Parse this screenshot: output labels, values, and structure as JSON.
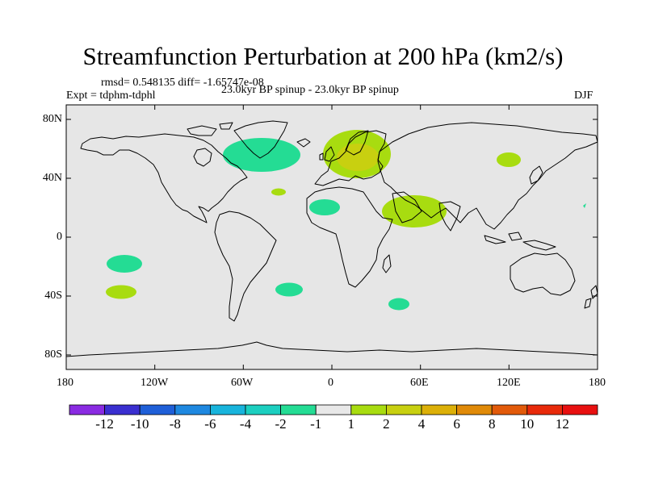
{
  "title": "Streamfunction Perturbation at 200 hPa (km2/s)",
  "stats": "rmsd= 0.548135 diff= -1.65747e-08",
  "left_label": "Expt = tdphm-tdphl",
  "center_label": "23.0kyr BP spinup - 23.0kyr BP spinup",
  "right_label": "DJF",
  "x_ticks": [
    "180",
    "120W",
    "60W",
    "0",
    "60E",
    "120E",
    "180"
  ],
  "y_ticks": [
    "80N",
    "40N",
    "0",
    "40S",
    "80S"
  ],
  "colorbar": {
    "labels": [
      "-12",
      "-10",
      "-8",
      "-6",
      "-4",
      "-2",
      "-1",
      "1",
      "2",
      "4",
      "6",
      "8",
      "10",
      "12"
    ],
    "colors": [
      "#8a2be2",
      "#3a2fd0",
      "#1f5fd8",
      "#1e88e0",
      "#18b4dc",
      "#1ccfc0",
      "#24dc94",
      "#e8e8e8",
      "#a8dc10",
      "#c8d010",
      "#dcb008",
      "#e08a08",
      "#e25a0a",
      "#e82a0a",
      "#e81010"
    ]
  },
  "map_data": {
    "type": "contour-map",
    "projection": "cylindrical-equidistant",
    "lon_range": [
      -180,
      180
    ],
    "lat_range": [
      -90,
      90
    ],
    "anomalies": [
      {
        "name": "North Atlantic negative",
        "lon": -36,
        "lat": 58,
        "level": "-1 to -2"
      },
      {
        "name": "Europe positive",
        "lon": 10,
        "lat": 55,
        "level": "1 to 4"
      },
      {
        "name": "Arabia positive",
        "lon": 55,
        "lat": 23,
        "level": "1 to 2"
      },
      {
        "name": "Sahara negative",
        "lon": -5,
        "lat": 22,
        "level": "-1 to -2"
      },
      {
        "name": "East Asia positive",
        "lon": 115,
        "lat": 52,
        "level": "1 to 2"
      },
      {
        "name": "Azores small positive",
        "lon": -35,
        "lat": 32,
        "level": "1 to 2"
      },
      {
        "name": "South Pacific negative",
        "lon": -145,
        "lat": -16,
        "level": "-1 to -2"
      },
      {
        "name": "South Pacific positive",
        "lon": -147,
        "lat": -36,
        "level": "1 to 2"
      },
      {
        "name": "South Atlantic negative",
        "lon": -28,
        "lat": -35,
        "level": "-1 to -2"
      },
      {
        "name": "Indian Ocean negative",
        "lon": 44,
        "lat": -44,
        "level": "-1 to -2"
      }
    ]
  }
}
